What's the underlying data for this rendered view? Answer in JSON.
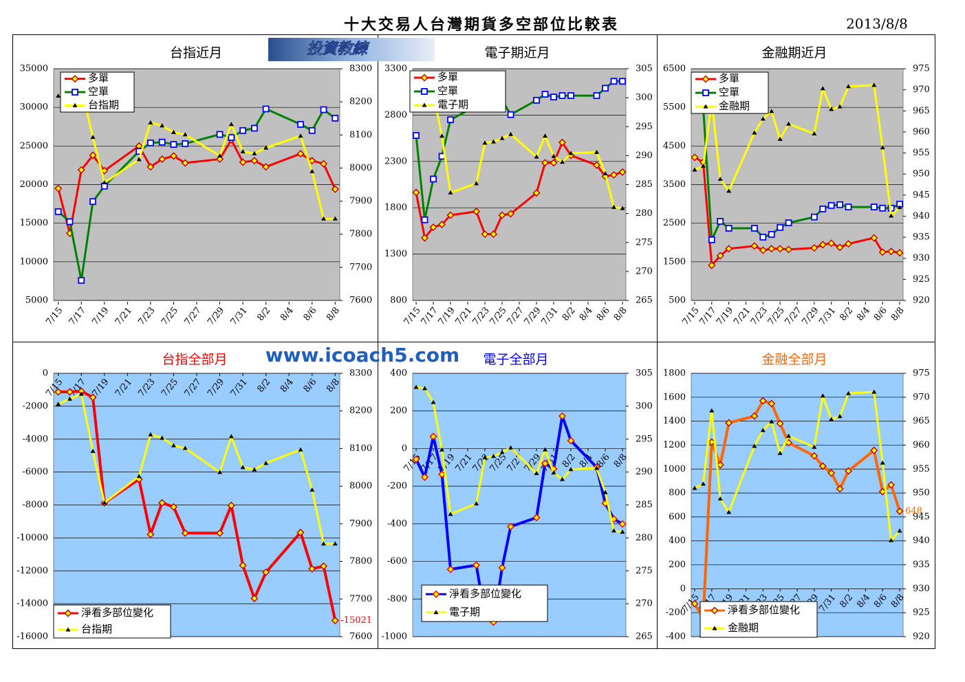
{
  "page_title": "十大交易人台灣期貨多空部位比較表",
  "date": "2013/8/8",
  "banner": "投資教練",
  "watermark": "www.icoach5.com",
  "chart_data": [
    {
      "type": "line",
      "title": "台指近月",
      "title_color": "#000000",
      "plot_color": "#c0c0c0",
      "grid": true,
      "legend": "upper left",
      "x": [
        "7/15",
        "7/16",
        "7/17",
        "7/18",
        "7/19",
        "7/22",
        "7/23",
        "7/24",
        "7/25",
        "7/26",
        "7/29",
        "7/30",
        "7/31",
        "8/1",
        "8/2",
        "8/5",
        "8/6",
        "8/7",
        "8/8"
      ],
      "xticks": [
        "7/15",
        "7/17",
        "7/19",
        "7/21",
        "7/23",
        "7/25",
        "7/27",
        "7/29",
        "7/31",
        "8/2",
        "8/4",
        "8/6",
        "8/8"
      ],
      "ylim": [
        5000,
        35000
      ],
      "yticks": [
        5000,
        10000,
        15000,
        20000,
        25000,
        30000,
        35000
      ],
      "y2lim": [
        7600,
        8300
      ],
      "y2ticks": [
        7600,
        7700,
        7800,
        7900,
        8000,
        8100,
        8200,
        8300
      ],
      "series": [
        {
          "name": "多單",
          "color": "#ff0000",
          "marker": "diamond",
          "values": [
            19500,
            13700,
            21900,
            23800,
            21800,
            25000,
            22300,
            23300,
            23700,
            22800,
            23300,
            25800,
            22900,
            23100,
            22300,
            24000,
            23100,
            22700,
            19400
          ]
        },
        {
          "name": "空單",
          "color": "#008000",
          "marker": "square",
          "values": [
            16500,
            15200,
            7600,
            17800,
            19800,
            24300,
            25400,
            25500,
            25200,
            25300,
            26500,
            26100,
            27000,
            27300,
            29800,
            27800,
            27000,
            29700,
            28600
          ]
        },
        {
          "name": "台指期",
          "color": "#ffff00",
          "marker": "triangle",
          "axis": "y2",
          "values": [
            8218,
            8232,
            8245,
            8093,
            7956,
            8026,
            8137,
            8128,
            8108,
            8101,
            8037,
            8132,
            8050,
            8044,
            8061,
            8097,
            7990,
            7847,
            7847
          ]
        }
      ]
    },
    {
      "type": "line",
      "title": "電子期近月",
      "title_color": "#000000",
      "plot_color": "#c0c0c0",
      "grid": true,
      "legend": "upper left",
      "x": [
        "7/15",
        "7/16",
        "7/17",
        "7/18",
        "7/19",
        "7/22",
        "7/23",
        "7/24",
        "7/25",
        "7/26",
        "7/29",
        "7/30",
        "7/31",
        "8/1",
        "8/2",
        "8/5",
        "8/6",
        "8/7",
        "8/8"
      ],
      "xticks": [
        "7/15",
        "7/17",
        "7/19",
        "7/21",
        "7/23",
        "7/25",
        "7/27",
        "7/29",
        "7/31",
        "8/2",
        "8/4",
        "8/6",
        "8/8"
      ],
      "ylim": [
        800,
        3300
      ],
      "yticks": [
        800,
        1300,
        1800,
        2300,
        2800,
        3300
      ],
      "y2lim": [
        265,
        305
      ],
      "y2ticks": [
        265,
        270,
        275,
        280,
        285,
        290,
        295,
        300,
        305
      ],
      "series": [
        {
          "name": "多單",
          "color": "#ff0000",
          "marker": "diamond",
          "values": [
            1965,
            1475,
            1590,
            1620,
            1720,
            1760,
            1515,
            1515,
            1720,
            1735,
            1960,
            2285,
            2285,
            2505,
            2365,
            2260,
            2140,
            2155,
            2185
          ]
        },
        {
          "name": "空單",
          "color": "#008000",
          "marker": "square",
          "values": [
            2580,
            1670,
            2110,
            2355,
            2750,
            2900,
            2950,
            2960,
            2960,
            2805,
            2960,
            3025,
            2995,
            3010,
            3010,
            3010,
            3090,
            3165,
            3165
          ]
        },
        {
          "name": "電子期",
          "color": "#ffff00",
          "marker": "triangle",
          "axis": "y2",
          "values": [
            302.9,
            302.7,
            300.6,
            293.4,
            283.6,
            285.2,
            292.2,
            292.4,
            293,
            293.7,
            289.8,
            293.4,
            289.9,
            288.9,
            290.4,
            290.6,
            286.9,
            281.1,
            280.9
          ]
        }
      ]
    },
    {
      "type": "line",
      "title": "金融期近月",
      "title_color": "#000000",
      "plot_color": "#c0c0c0",
      "grid": true,
      "legend": "upper left",
      "x": [
        "7/15",
        "7/16",
        "7/17",
        "7/18",
        "7/19",
        "7/22",
        "7/23",
        "7/24",
        "7/25",
        "7/26",
        "7/29",
        "7/30",
        "7/31",
        "8/1",
        "8/2",
        "8/5",
        "8/6",
        "8/7",
        "8/8"
      ],
      "xticks": [
        "7/15",
        "7/17",
        "7/19",
        "7/21",
        "7/23",
        "7/25",
        "7/27",
        "7/29",
        "7/31",
        "8/2",
        "8/4",
        "8/6",
        "8/8"
      ],
      "ylim": [
        500,
        6500
      ],
      "yticks": [
        500,
        1500,
        2500,
        3500,
        4500,
        5500,
        6500
      ],
      "y2lim": [
        920,
        975
      ],
      "y2ticks": [
        920,
        925,
        930,
        935,
        940,
        945,
        950,
        955,
        960,
        965,
        970,
        975
      ],
      "series": [
        {
          "name": "多單",
          "color": "#ff0000",
          "marker": "diamond",
          "values": [
            4205,
            4080,
            1410,
            1660,
            1840,
            1910,
            1800,
            1840,
            1840,
            1820,
            1860,
            1945,
            1980,
            1875,
            1965,
            2120,
            1750,
            1770,
            1735
          ]
        },
        {
          "name": "空單",
          "color": "#008000",
          "marker": "square",
          "values": [
            5800,
            5500,
            2070,
            2550,
            2370,
            2370,
            2140,
            2210,
            2390,
            2510,
            2660,
            2870,
            2960,
            2980,
            2920,
            2920,
            2890,
            2890,
            2995
          ]
        },
        {
          "name": "金融期",
          "color": "#ffff00",
          "marker": "triangle",
          "axis": "y2",
          "values": [
            951,
            951.9,
            967.2,
            948.8,
            946,
            959.8,
            963.1,
            964.9,
            958.3,
            961.9,
            959.6,
            970.3,
            965.4,
            966,
            970.8,
            971.1,
            956.3,
            940.1,
            942.1
          ]
        }
      ]
    },
    {
      "type": "line",
      "title": "台指全部月",
      "title_color": "#ff0000",
      "plot_color": "#99ccff",
      "grid": true,
      "legend": "lower left",
      "x": [
        "7/15",
        "7/16",
        "7/17",
        "7/18",
        "7/19",
        "7/22",
        "7/23",
        "7/24",
        "7/25",
        "7/26",
        "7/29",
        "7/30",
        "7/31",
        "8/1",
        "8/2",
        "8/5",
        "8/6",
        "8/7",
        "8/8"
      ],
      "xticks": [
        "7/15",
        "7/17",
        "7/19",
        "7/21",
        "7/23",
        "7/25",
        "7/27",
        "7/29",
        "7/31",
        "8/2",
        "8/4",
        "8/6",
        "8/8"
      ],
      "ylim": [
        -16000,
        0
      ],
      "yticks": [
        -16000,
        -14000,
        -12000,
        -10000,
        -8000,
        -6000,
        -4000,
        -2000,
        0
      ],
      "y2lim": [
        7600,
        8300
      ],
      "y2ticks": [
        7600,
        7700,
        7800,
        7900,
        8000,
        8100,
        8200,
        8300
      ],
      "series": [
        {
          "name": "淨看多部位變化",
          "color": "#ff0000",
          "marker": "diamond",
          "end_label": true,
          "values": [
            -1130,
            -1130,
            -1090,
            -1460,
            -7870,
            -6440,
            -9790,
            -7870,
            -8120,
            -9710,
            -9710,
            -8030,
            -11670,
            -13680,
            -12090,
            -9670,
            -11880,
            -11720,
            -15021
          ]
        },
        {
          "name": "台指期",
          "color": "#ffff00",
          "marker": "triangle",
          "axis": "y2",
          "values": [
            8218,
            8232,
            8245,
            8093,
            7956,
            8026,
            8137,
            8128,
            8108,
            8101,
            8037,
            8132,
            8050,
            8044,
            8061,
            8097,
            7990,
            7847,
            7847
          ]
        }
      ]
    },
    {
      "type": "line",
      "title": "電子全部月",
      "title_color": "#0000ff",
      "plot_color": "#99ccff",
      "grid": true,
      "legend": "lower left",
      "x": [
        "7/15",
        "7/16",
        "7/17",
        "7/18",
        "7/19",
        "7/22",
        "7/23",
        "7/24",
        "7/25",
        "7/26",
        "7/29",
        "7/30",
        "7/31",
        "8/1",
        "8/2",
        "8/5",
        "8/6",
        "8/7",
        "8/8"
      ],
      "xticks": [
        "7/15",
        "7/17",
        "7/19",
        "7/21",
        "7/23",
        "7/25",
        "7/27",
        "7/29",
        "7/31",
        "8/2",
        "8/4",
        "8/6",
        "8/8"
      ],
      "ylim": [
        -1000,
        400
      ],
      "yticks": [
        -1000,
        -800,
        -600,
        -400,
        -200,
        0,
        200,
        400
      ],
      "y2lim": [
        265,
        305
      ],
      "y2ticks": [
        265,
        270,
        275,
        280,
        285,
        290,
        295,
        300,
        305
      ],
      "series": [
        {
          "name": "淨看多部位變化",
          "color": "#0000ff",
          "marker": "diamond",
          "values": [
            -57,
            -152,
            64,
            -137,
            -642,
            -620,
            -887,
            -923,
            -634,
            -415,
            -367,
            -79,
            -108,
            173,
            42,
            -100,
            -291,
            -375,
            -401
          ]
        },
        {
          "name": "電子期",
          "color": "#ffff00",
          "marker": "triangle",
          "axis": "y2",
          "values": [
            302.9,
            302.7,
            300.6,
            293.4,
            283.6,
            285.2,
            292.2,
            292.4,
            293,
            293.7,
            289.8,
            293.4,
            289.9,
            288.9,
            290.4,
            290.6,
            286.9,
            281.1,
            280.9
          ]
        }
      ]
    },
    {
      "type": "line",
      "title": "金融全部月",
      "title_color": "#ff6600",
      "plot_color": "#99ccff",
      "grid": true,
      "legend": "lower left",
      "x": [
        "7/15",
        "7/16",
        "7/17",
        "7/18",
        "7/19",
        "7/22",
        "7/23",
        "7/24",
        "7/25",
        "7/26",
        "7/29",
        "7/30",
        "7/31",
        "8/1",
        "8/2",
        "8/5",
        "8/6",
        "8/7",
        "8/8"
      ],
      "xticks": [
        "7/15",
        "7/17",
        "7/19",
        "7/21",
        "7/23",
        "7/25",
        "7/27",
        "7/29",
        "7/31",
        "8/2",
        "8/4",
        "8/6",
        "8/8"
      ],
      "ylim": [
        -400,
        1800
      ],
      "yticks": [
        -400,
        -200,
        0,
        200,
        400,
        600,
        800,
        1000,
        1200,
        1400,
        1600,
        1800
      ],
      "y2lim": [
        920,
        975
      ],
      "y2ticks": [
        920,
        925,
        930,
        935,
        940,
        945,
        950,
        955,
        960,
        965,
        970,
        975
      ],
      "series": [
        {
          "name": "淨看多部位變化",
          "color": "#ff6600",
          "marker": "diamond",
          "end_label": true,
          "values": [
            -125,
            -250,
            1225,
            1035,
            1386,
            1443,
            1570,
            1547,
            1380,
            1220,
            1110,
            1025,
            967,
            835,
            984,
            1156,
            811,
            868,
            648
          ]
        },
        {
          "name": "金融期",
          "color": "#ffff00",
          "marker": "triangle",
          "axis": "y2",
          "values": [
            951,
            951.9,
            967.2,
            948.8,
            946,
            959.8,
            963.1,
            964.9,
            958.3,
            961.9,
            959.6,
            970.3,
            965.4,
            966,
            970.8,
            971.1,
            956.3,
            940.1,
            942.1
          ]
        }
      ]
    }
  ]
}
